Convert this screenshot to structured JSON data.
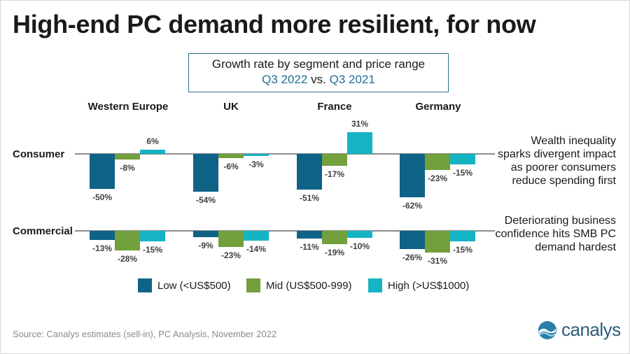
{
  "title": "High-end PC demand more resilient, for now",
  "subtitle": {
    "line1": "Growth rate by segment and price range",
    "period_a": "Q3 2022",
    "vs": "vs.",
    "period_b": "Q3 2021"
  },
  "notes": {
    "consumer": [
      "Wealth inequality",
      "sparks divergent impact",
      "as poorer consumers",
      "reduce spending first"
    ],
    "commercial": [
      "Deteriorating business",
      "confidence hits SMB PC",
      "demand hardest"
    ]
  },
  "source": "Source: Canalys estimates (sell-in), PC Analysis, November 2022",
  "logo": {
    "text": "canalys",
    "icon": "canalys-wave-icon"
  },
  "colors": {
    "low": "#0e6387",
    "mid": "#72a03c",
    "high": "#14b4c4",
    "axis": "#1a1a1a",
    "label": "#404040"
  },
  "chart_data": {
    "type": "bar",
    "title": "Growth rate by segment and price range, Q3 2022 vs. Q3 2021",
    "categories": [
      "Western Europe",
      "UK",
      "France",
      "Germany"
    ],
    "segments": [
      "Consumer",
      "Commercial"
    ],
    "unit": "%",
    "series": [
      {
        "name": "Low (<US$500)",
        "key": "low",
        "consumer": [
          -50,
          -54,
          -51,
          -62
        ],
        "commercial": [
          -13,
          -9,
          -11,
          -26
        ]
      },
      {
        "name": "Mid (US$500-999)",
        "key": "mid",
        "consumer": [
          -8,
          -6,
          -17,
          -23
        ],
        "commercial": [
          -28,
          -23,
          -19,
          -31
        ]
      },
      {
        "name": "High (>US$1000)",
        "key": "high",
        "consumer": [
          6,
          -3,
          31,
          -15
        ],
        "commercial": [
          -15,
          -14,
          -10,
          -15
        ]
      }
    ],
    "legend_position": "bottom"
  }
}
